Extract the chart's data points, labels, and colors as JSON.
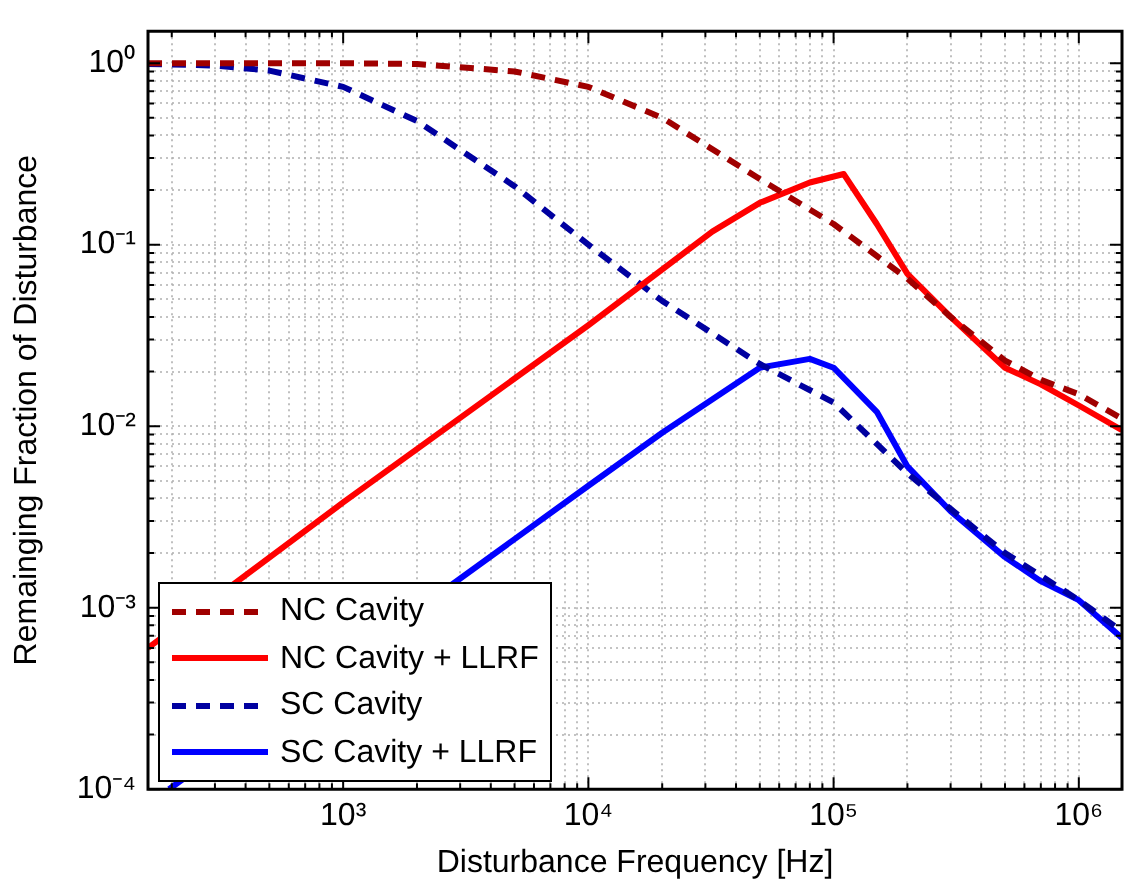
{
  "chart_data": {
    "type": "line",
    "xlabel": "Disturbance Frequency [Hz]",
    "ylabel": "Remainging Fraction of Disturbance",
    "log": "xy",
    "grid": true,
    "legend": "bottom left",
    "marker": "none",
    "xlim": [
      160,
      1500000
    ],
    "ylim": [
      0.0001,
      1.5
    ],
    "xticks": [
      {
        "value": 200,
        "label": null
      },
      {
        "value": 300,
        "label": null
      },
      {
        "value": 400,
        "label": null
      },
      {
        "value": 500,
        "label": null
      },
      {
        "value": 600,
        "label": null
      },
      {
        "value": 700,
        "label": null
      },
      {
        "value": 800,
        "label": null
      },
      {
        "value": 900,
        "label": null
      },
      {
        "value": 1000,
        "label": "10³"
      },
      {
        "value": 2000,
        "label": null
      },
      {
        "value": 3000,
        "label": null
      },
      {
        "value": 4000,
        "label": null
      },
      {
        "value": 5000,
        "label": null
      },
      {
        "value": 6000,
        "label": null
      },
      {
        "value": 7000,
        "label": null
      },
      {
        "value": 8000,
        "label": null
      },
      {
        "value": 9000,
        "label": null
      },
      {
        "value": 10000,
        "label": "10⁴"
      },
      {
        "value": 20000,
        "label": null
      },
      {
        "value": 30000,
        "label": null
      },
      {
        "value": 40000,
        "label": null
      },
      {
        "value": 50000,
        "label": null
      },
      {
        "value": 60000,
        "label": null
      },
      {
        "value": 70000,
        "label": null
      },
      {
        "value": 80000,
        "label": null
      },
      {
        "value": 90000,
        "label": null
      },
      {
        "value": 100000,
        "label": "10⁵"
      },
      {
        "value": 200000,
        "label": null
      },
      {
        "value": 300000,
        "label": null
      },
      {
        "value": 400000,
        "label": null
      },
      {
        "value": 500000,
        "label": null
      },
      {
        "value": 600000,
        "label": null
      },
      {
        "value": 700000,
        "label": null
      },
      {
        "value": 800000,
        "label": null
      },
      {
        "value": 900000,
        "label": null
      },
      {
        "value": 1000000,
        "label": "10⁶"
      }
    ],
    "yticks": [
      {
        "value": 0.0001,
        "label": "10⁻⁴"
      },
      {
        "value": 0.0002,
        "label": null
      },
      {
        "value": 0.0003,
        "label": null
      },
      {
        "value": 0.0004,
        "label": null
      },
      {
        "value": 0.0005,
        "label": null
      },
      {
        "value": 0.0006,
        "label": null
      },
      {
        "value": 0.0007,
        "label": null
      },
      {
        "value": 0.0008,
        "label": null
      },
      {
        "value": 0.0009,
        "label": null
      },
      {
        "value": 0.001,
        "label": "10⁻³"
      },
      {
        "value": 0.002,
        "label": null
      },
      {
        "value": 0.003,
        "label": null
      },
      {
        "value": 0.004,
        "label": null
      },
      {
        "value": 0.005,
        "label": null
      },
      {
        "value": 0.006,
        "label": null
      },
      {
        "value": 0.007,
        "label": null
      },
      {
        "value": 0.008,
        "label": null
      },
      {
        "value": 0.009,
        "label": null
      },
      {
        "value": 0.01,
        "label": "10⁻²"
      },
      {
        "value": 0.02,
        "label": null
      },
      {
        "value": 0.03,
        "label": null
      },
      {
        "value": 0.04,
        "label": null
      },
      {
        "value": 0.05,
        "label": null
      },
      {
        "value": 0.06,
        "label": null
      },
      {
        "value": 0.07,
        "label": null
      },
      {
        "value": 0.08,
        "label": null
      },
      {
        "value": 0.09,
        "label": null
      },
      {
        "value": 0.1,
        "label": "10⁻¹"
      },
      {
        "value": 0.2,
        "label": null
      },
      {
        "value": 0.3,
        "label": null
      },
      {
        "value": 0.4,
        "label": null
      },
      {
        "value": 0.5,
        "label": null
      },
      {
        "value": 0.6,
        "label": null
      },
      {
        "value": 0.7,
        "label": null
      },
      {
        "value": 0.8,
        "label": null
      },
      {
        "value": 0.9,
        "label": null
      },
      {
        "value": 1,
        "label": "10⁰"
      }
    ],
    "series": [
      {
        "name": "NC Cavity",
        "color": "#a00000",
        "line_style": "dashed",
        "x": [
          160,
          1000,
          2000,
          5000,
          10000,
          20000,
          50000,
          100000,
          200000,
          300000,
          500000,
          700000,
          1000000,
          1500000
        ],
        "values": [
          1,
          1,
          0.99,
          0.9,
          0.74,
          0.5,
          0.23,
          0.13,
          0.065,
          0.04,
          0.023,
          0.018,
          0.015,
          0.011
        ]
      },
      {
        "name": "NC Cavity + LLRF",
        "color": "#ff0000",
        "line_style": "solid",
        "x": [
          160,
          1000,
          10000,
          32000,
          50000,
          80000,
          110000,
          150000,
          200000,
          300000,
          500000,
          700000,
          1000000,
          1500000
        ],
        "values": [
          0.0006,
          0.0038,
          0.036,
          0.118,
          0.17,
          0.22,
          0.245,
          0.13,
          0.069,
          0.04,
          0.021,
          0.017,
          0.013,
          0.0095
        ]
      },
      {
        "name": "SC Cavity",
        "color": "#0000a0",
        "line_style": "dashed",
        "x": [
          160,
          300,
          500,
          1000,
          2000,
          5000,
          10000,
          20000,
          50000,
          100000,
          200000,
          300000,
          500000,
          700000,
          1000000,
          1500000
        ],
        "values": [
          0.99,
          0.97,
          0.91,
          0.74,
          0.48,
          0.21,
          0.1,
          0.049,
          0.022,
          0.0135,
          0.0055,
          0.0035,
          0.002,
          0.0015,
          0.0011,
          0.00074
        ]
      },
      {
        "name": "SC Cavity + LLRF",
        "color": "#0000ff",
        "line_style": "solid",
        "x": [
          195,
          1000,
          10000,
          20000,
          50000,
          80000,
          100000,
          150000,
          200000,
          300000,
          500000,
          700000,
          1000000,
          1500000
        ],
        "values": [
          0.0001,
          null,
          0.0047,
          0.0092,
          0.021,
          0.0235,
          0.021,
          0.012,
          0.006,
          0.0034,
          0.0019,
          0.0014,
          0.0011,
          0.00068
        ]
      }
    ]
  }
}
